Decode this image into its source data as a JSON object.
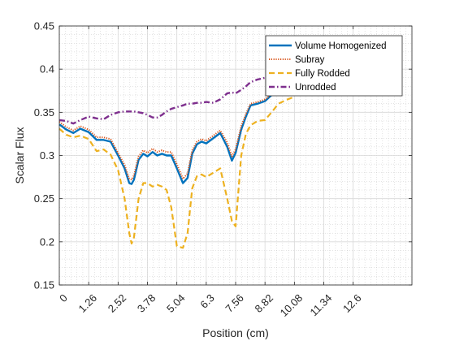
{
  "chart_data": {
    "type": "line",
    "xlabel": "Position (cm)",
    "ylabel": "Scalar Flux",
    "xlim": [
      0,
      15.12
    ],
    "ylim": [
      0.15,
      0.45
    ],
    "x_ticks": [
      "0",
      "1.26",
      "2.52",
      "3.78",
      "5.04",
      "6.3",
      "7.56",
      "8.82",
      "10.08",
      "11.34",
      "12.6"
    ],
    "y_ticks": [
      "0.15",
      "0.2",
      "0.25",
      "0.3",
      "0.35",
      "0.4",
      "0.45"
    ],
    "grid": true,
    "minor_grid": true,
    "legend_position": "top-right",
    "series": [
      {
        "name": "Volume Homogenized",
        "color": "#0072BD",
        "style": "solid",
        "x": [
          0,
          0.3,
          0.6,
          0.9,
          1.26,
          1.6,
          1.9,
          2.2,
          2.52,
          2.8,
          3.0,
          3.1,
          3.2,
          3.4,
          3.6,
          3.78,
          4.0,
          4.2,
          4.4,
          4.6,
          4.8,
          5.04,
          5.3,
          5.5,
          5.7,
          5.9,
          6.1,
          6.3,
          6.6,
          6.9,
          7.2,
          7.4,
          7.56,
          7.8,
          8.0,
          8.2,
          8.5,
          8.82,
          9.1,
          9.4,
          9.7,
          10.08
        ],
        "y": [
          0.336,
          0.33,
          0.326,
          0.331,
          0.327,
          0.318,
          0.318,
          0.316,
          0.3,
          0.285,
          0.268,
          0.267,
          0.272,
          0.295,
          0.302,
          0.299,
          0.304,
          0.3,
          0.302,
          0.3,
          0.3,
          0.285,
          0.268,
          0.274,
          0.302,
          0.313,
          0.316,
          0.314,
          0.32,
          0.326,
          0.31,
          0.294,
          0.303,
          0.33,
          0.345,
          0.358,
          0.36,
          0.363,
          0.37,
          0.372,
          0.374,
          0.376
        ]
      },
      {
        "name": "Subray",
        "color": "#D95319",
        "style": "dotted",
        "x": [
          0,
          0.3,
          0.6,
          0.9,
          1.26,
          1.6,
          1.9,
          2.2,
          2.52,
          2.8,
          3.0,
          3.1,
          3.2,
          3.4,
          3.6,
          3.78,
          4.0,
          4.2,
          4.4,
          4.6,
          4.8,
          5.04,
          5.3,
          5.5,
          5.7,
          5.9,
          6.1,
          6.3,
          6.6,
          6.9,
          7.2,
          7.4,
          7.56,
          7.8,
          8.0,
          8.2,
          8.5,
          8.82,
          9.1,
          9.4,
          9.7,
          10.08
        ],
        "y": [
          0.339,
          0.333,
          0.329,
          0.334,
          0.33,
          0.321,
          0.321,
          0.319,
          0.303,
          0.289,
          0.273,
          0.272,
          0.277,
          0.299,
          0.306,
          0.303,
          0.308,
          0.304,
          0.306,
          0.304,
          0.304,
          0.29,
          0.273,
          0.279,
          0.306,
          0.316,
          0.319,
          0.317,
          0.323,
          0.329,
          0.315,
          0.299,
          0.307,
          0.334,
          0.348,
          0.36,
          0.362,
          0.365,
          0.371,
          0.373,
          0.375,
          0.377
        ]
      },
      {
        "name": "Fully Rodded",
        "color": "#EDB120",
        "style": "dashed",
        "x": [
          0,
          0.3,
          0.6,
          0.9,
          1.26,
          1.6,
          1.9,
          2.2,
          2.52,
          2.8,
          3.0,
          3.1,
          3.2,
          3.4,
          3.6,
          3.78,
          4.0,
          4.2,
          4.4,
          4.6,
          4.8,
          5.04,
          5.3,
          5.5,
          5.7,
          5.9,
          6.1,
          6.3,
          6.6,
          6.9,
          7.2,
          7.4,
          7.56,
          7.8,
          8.0,
          8.2,
          8.5,
          8.82,
          9.1,
          9.4,
          9.7,
          10.08
        ],
        "y": [
          0.331,
          0.324,
          0.321,
          0.323,
          0.319,
          0.305,
          0.307,
          0.301,
          0.283,
          0.25,
          0.21,
          0.198,
          0.205,
          0.25,
          0.268,
          0.268,
          0.264,
          0.266,
          0.264,
          0.26,
          0.24,
          0.195,
          0.193,
          0.21,
          0.262,
          0.276,
          0.278,
          0.275,
          0.28,
          0.285,
          0.25,
          0.224,
          0.218,
          0.3,
          0.325,
          0.335,
          0.34,
          0.341,
          0.35,
          0.36,
          0.364,
          0.368
        ]
      },
      {
        "name": "Unrodded",
        "color": "#7E2F8E",
        "style": "dashdot",
        "x": [
          0,
          0.3,
          0.6,
          0.9,
          1.26,
          1.6,
          1.9,
          2.2,
          2.52,
          2.8,
          3.0,
          3.1,
          3.2,
          3.4,
          3.6,
          3.78,
          4.0,
          4.2,
          4.4,
          4.6,
          4.8,
          5.04,
          5.3,
          5.5,
          5.7,
          5.9,
          6.1,
          6.3,
          6.6,
          6.9,
          7.2,
          7.4,
          7.56,
          7.8,
          8.0,
          8.2,
          8.5,
          8.82,
          9.1,
          9.4,
          9.7,
          10.08
        ],
        "y": [
          0.341,
          0.34,
          0.337,
          0.341,
          0.345,
          0.343,
          0.342,
          0.347,
          0.35,
          0.351,
          0.351,
          0.351,
          0.351,
          0.35,
          0.349,
          0.347,
          0.344,
          0.344,
          0.347,
          0.351,
          0.354,
          0.356,
          0.358,
          0.36,
          0.36,
          0.361,
          0.361,
          0.362,
          0.361,
          0.365,
          0.372,
          0.373,
          0.372,
          0.376,
          0.38,
          0.385,
          0.388,
          0.39,
          0.392,
          0.392,
          0.392,
          0.392
        ]
      }
    ]
  }
}
